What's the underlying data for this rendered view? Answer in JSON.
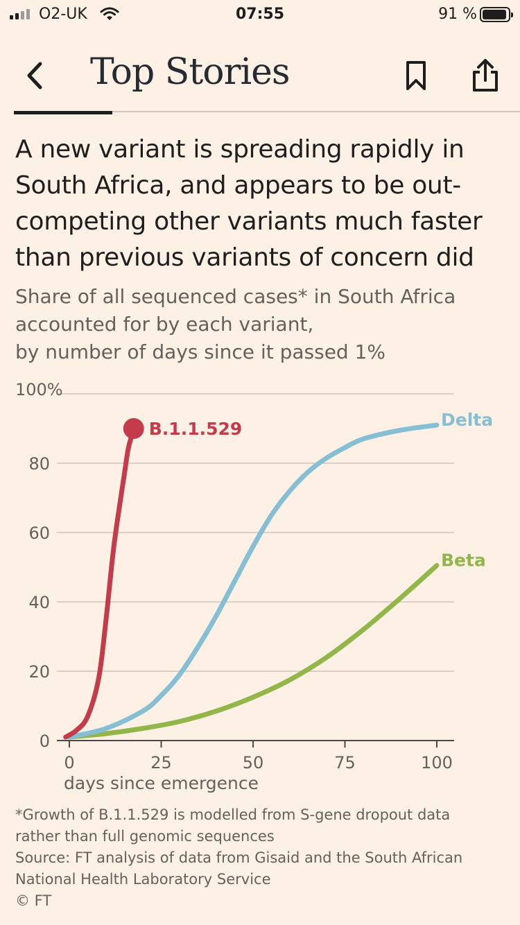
{
  "status_bar": {
    "carrier": "O2-UK",
    "time": "07:55",
    "battery_percent": "91 %",
    "battery_level": 0.91,
    "signal_icon": "signal-bars-icon",
    "wifi_icon": "wifi-icon",
    "battery_icon": "battery-icon"
  },
  "header": {
    "title": "Top Stories",
    "back_icon": "chevron-left-icon",
    "bookmark_icon": "bookmark-icon",
    "share_icon": "share-icon"
  },
  "colors": {
    "background": "#fdf1e6",
    "b11529": "#c43c4c",
    "delta": "#86bfd3",
    "beta": "#93b64a"
  },
  "chart_data": {
    "type": "line",
    "title": "A new variant is spreading rapidly in South Africa, and appears to be out-competing other variants much faster than previous variants of concern did",
    "subtitle": [
      "Share of all sequenced cases* in South Africa",
      "accounted for by each variant,",
      "by number of days since it passed 1%"
    ],
    "xlabel": "days since emergence",
    "ylabel": "",
    "xlim": [
      0,
      100
    ],
    "ylim": [
      0,
      100
    ],
    "x_ticks": [
      0,
      25,
      50,
      75,
      100
    ],
    "y_ticks": [
      0,
      20,
      40,
      60,
      80,
      100
    ],
    "y_tick_labels": [
      "0",
      "20",
      "40",
      "60",
      "80",
      "100%"
    ],
    "grid": "horizontal",
    "series": [
      {
        "name": "B.1.1.529",
        "color": "#c43c4c",
        "end_marker": true,
        "points": [
          [
            -1,
            1
          ],
          [
            2,
            3
          ],
          [
            5,
            7
          ],
          [
            8,
            18
          ],
          [
            10,
            35
          ],
          [
            12,
            55
          ],
          [
            14,
            70
          ],
          [
            15,
            77
          ],
          [
            16,
            84
          ],
          [
            17,
            88
          ],
          [
            17.5,
            90
          ]
        ]
      },
      {
        "name": "Delta",
        "color": "#86bfd3",
        "end_marker": false,
        "points": [
          [
            0,
            1
          ],
          [
            10,
            3.5
          ],
          [
            20,
            8.5
          ],
          [
            25,
            13
          ],
          [
            30,
            19
          ],
          [
            35,
            27
          ],
          [
            40,
            36
          ],
          [
            45,
            46
          ],
          [
            50,
            56
          ],
          [
            55,
            65
          ],
          [
            60,
            72
          ],
          [
            65,
            77.5
          ],
          [
            70,
            81.5
          ],
          [
            75,
            84.5
          ],
          [
            80,
            87
          ],
          [
            90,
            89.5
          ],
          [
            100,
            91
          ]
        ]
      },
      {
        "name": "Beta",
        "color": "#93b64a",
        "end_marker": false,
        "points": [
          [
            0,
            1
          ],
          [
            10,
            2
          ],
          [
            20,
            3.5
          ],
          [
            30,
            5.5
          ],
          [
            40,
            8.5
          ],
          [
            50,
            12.5
          ],
          [
            60,
            17.5
          ],
          [
            70,
            24
          ],
          [
            80,
            32
          ],
          [
            90,
            41
          ],
          [
            100,
            50.5
          ]
        ]
      }
    ]
  },
  "footnote": [
    "*Growth of B.1.1.529 is modelled from S-gene dropout data",
    "rather than full genomic sequences",
    "Source: FT analysis of data from Gisaid and the South African",
    "National Health Laboratory Service",
    "© FT"
  ]
}
